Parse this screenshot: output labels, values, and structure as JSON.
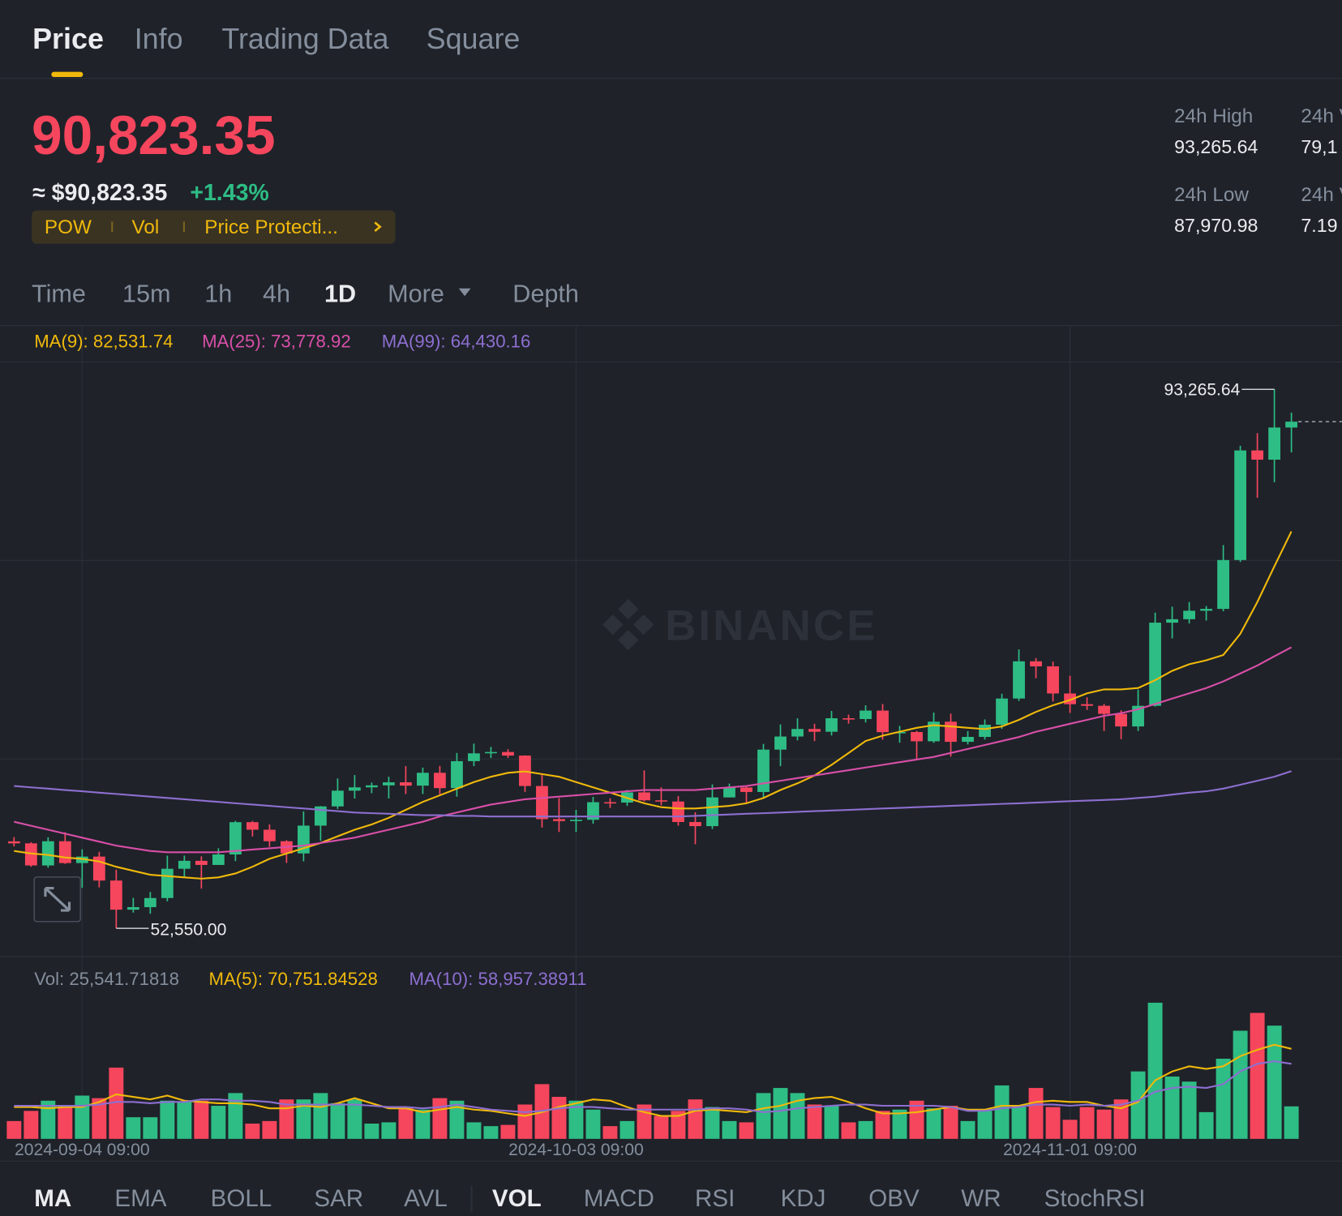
{
  "tabs": [
    "Price",
    "Info",
    "Trading Data",
    "Square"
  ],
  "price": {
    "last": "90,823.35",
    "usd": "≈ $90,823.35",
    "change": "+1.43%"
  },
  "tags": [
    "POW",
    "Vol",
    "Price Protecti..."
  ],
  "stats": [
    {
      "label": "24h High",
      "value": "93,265.64"
    },
    {
      "label": "24h Low",
      "value": "87,970.98"
    },
    {
      "label": "24h V",
      "value": "79,1"
    },
    {
      "label": "24h V",
      "value": "7.19"
    }
  ],
  "intervals": [
    "Time",
    "15m",
    "1h",
    "4h",
    "1D",
    "More",
    "Depth"
  ],
  "ma_legend": [
    "MA(9): 82,531.74",
    "MA(25): 73,778.92",
    "MA(99): 64,430.16"
  ],
  "vol_legend": [
    "Vol: 25,541.71818",
    "MA(5): 70,751.84528",
    "MA(10): 58,957.38911"
  ],
  "watermark": "BINANCE",
  "indicators": [
    "MA",
    "EMA",
    "BOLL",
    "SAR",
    "AVL",
    "VOL",
    "MACD",
    "RSI",
    "KDJ",
    "OBV",
    "WR",
    "StochRSI"
  ],
  "chart_data": {
    "type": "candlestick",
    "categories": [
      null,
      null,
      null,
      null,
      "2024-09-04 09:00",
      null,
      null,
      null,
      null,
      null,
      null,
      null,
      null,
      null,
      null,
      null,
      null,
      null,
      null,
      null,
      null,
      null,
      null,
      null,
      null,
      null,
      null,
      null,
      null,
      null,
      null,
      null,
      null,
      "2024-10-03 09:00",
      null,
      null,
      null,
      null,
      null,
      null,
      null,
      null,
      null,
      null,
      null,
      null,
      null,
      null,
      null,
      null,
      null,
      null,
      null,
      null,
      null,
      null,
      null,
      null,
      null,
      null,
      null,
      null,
      "2024-11-01 09:00",
      null,
      null,
      null,
      null,
      null,
      null,
      null,
      null,
      null,
      null,
      null,
      null,
      null
    ],
    "open": [
      59120,
      58970,
      57300,
      59130,
      57480,
      57970,
      56160,
      53960,
      54150,
      54840,
      57050,
      57650,
      57340,
      58130,
      60570,
      60000,
      59130,
      58210,
      60310,
      61760,
      62950,
      63200,
      63350,
      63580,
      63330,
      64300,
      63140,
      65180,
      65770,
      65870,
      65600,
      63300,
      60800,
      60650,
      60750,
      62080,
      62050,
      62820,
      62220,
      62130,
      60580,
      60270,
      62440,
      63190,
      62850,
      66050,
      67040,
      67610,
      67400,
      68420,
      68360,
      69000,
      67370,
      67380,
      66680,
      68160,
      66640,
      67010,
      67930,
      69910,
      72720,
      72340,
      70290,
      69480,
      69360,
      68750,
      67800,
      69360,
      75640,
      75900,
      76540,
      76680,
      80370,
      88650,
      87950,
      90380
    ],
    "high": [
      59450,
      59060,
      59430,
      59810,
      58520,
      58330,
      56980,
      54850,
      55300,
      58040,
      58040,
      57990,
      58600,
      60670,
      60660,
      60400,
      59210,
      61380,
      61790,
      63870,
      64130,
      63560,
      64000,
      64800,
      64690,
      64820,
      65800,
      66500,
      66260,
      66080,
      65620,
      64130,
      62390,
      61500,
      62480,
      62370,
      63000,
      64480,
      63200,
      62540,
      61320,
      63420,
      63480,
      63290,
      66480,
      67950,
      68420,
      68000,
      68970,
      68690,
      69400,
      69500,
      67840,
      67470,
      68850,
      68770,
      67450,
      68330,
      70270,
      73620,
      72960,
      72700,
      71630,
      70000,
      69500,
      69020,
      70580,
      76400,
      76850,
      77200,
      76900,
      81500,
      89000,
      89950,
      93265.64,
      91500
    ],
    "low": [
      58740,
      57200,
      57130,
      57420,
      55610,
      55650,
      52550,
      53740,
      53650,
      54590,
      56400,
      55550,
      57330,
      57630,
      59490,
      58700,
      57490,
      57610,
      59170,
      61570,
      62350,
      62760,
      62360,
      62700,
      62700,
      62670,
      62500,
      64800,
      65420,
      65420,
      62860,
      60160,
      59830,
      59830,
      60460,
      61640,
      61800,
      62130,
      61850,
      60300,
      58900,
      60050,
      62440,
      62040,
      62420,
      64800,
      66750,
      66700,
      67120,
      68010,
      68100,
      66800,
      66570,
      65260,
      66560,
      65520,
      66440,
      66810,
      67620,
      69730,
      71440,
      69680,
      68820,
      69050,
      67460,
      66840,
      67460,
      69300,
      74450,
      75580,
      75800,
      76500,
      80220,
      85070,
      86250,
      88500
    ],
    "close": [
      58970,
      57300,
      59130,
      57480,
      57970,
      56160,
      53960,
      54150,
      54840,
      57050,
      57650,
      57340,
      58130,
      60570,
      60000,
      59130,
      58210,
      60310,
      61760,
      62950,
      63200,
      63350,
      63580,
      63330,
      64300,
      63140,
      65180,
      65770,
      65870,
      65600,
      63300,
      60800,
      60650,
      60750,
      62080,
      62050,
      62820,
      62220,
      62130,
      60580,
      60270,
      62440,
      63190,
      62850,
      66050,
      67040,
      67610,
      67400,
      68420,
      68360,
      69000,
      67370,
      67380,
      66680,
      68160,
      66640,
      67010,
      67930,
      69910,
      72720,
      72340,
      70290,
      69480,
      69360,
      68750,
      67800,
      69360,
      75640,
      75900,
      76540,
      76680,
      80370,
      88650,
      87950,
      90380,
      90823.35
    ],
    "volume": [
      14000,
      22000,
      30000,
      25000,
      34000,
      32000,
      56000,
      17000,
      17000,
      30000,
      29000,
      30000,
      26000,
      36000,
      12000,
      14000,
      31000,
      31000,
      36000,
      28000,
      31000,
      12000,
      13000,
      25000,
      23000,
      32000,
      30000,
      13000,
      10000,
      11000,
      27000,
      43000,
      33000,
      30000,
      23000,
      10000,
      14000,
      27000,
      18000,
      22000,
      31000,
      25000,
      14000,
      13000,
      36000,
      40000,
      36000,
      27000,
      26000,
      13000,
      14000,
      22000,
      23000,
      30000,
      24000,
      26000,
      14000,
      22000,
      42000,
      25000,
      40000,
      25000,
      15000,
      25000,
      23000,
      31000,
      53000,
      107000,
      49000,
      45000,
      21000,
      63000,
      85000,
      99000,
      89000,
      25541.71818
    ],
    "ma_lines": [
      {
        "color": "#f0b90b",
        "values": [
          58400,
          58200,
          58100,
          57900,
          57800,
          57600,
          57200,
          56900,
          56600,
          56500,
          56400,
          56300,
          56400,
          56700,
          57200,
          57800,
          58200,
          58600,
          59000,
          59500,
          60000,
          60400,
          60900,
          61500,
          62100,
          62600,
          63100,
          63600,
          64000,
          64300,
          64400,
          64200,
          64000,
          63600,
          63200,
          62800,
          62400,
          62000,
          61700,
          61600,
          61600,
          61700,
          61800,
          62000,
          62400,
          63000,
          63500,
          64100,
          64900,
          65800,
          66700,
          67100,
          67400,
          67700,
          67900,
          67800,
          67700,
          67600,
          67800,
          68300,
          68900,
          69400,
          69800,
          70300,
          70600,
          70600,
          70700,
          71300,
          72000,
          72500,
          72800,
          73200,
          74800,
          77200,
          79900,
          82531.74
        ]
      },
      {
        "color": "#d94fa8",
        "values": [
          60600,
          60300,
          60000,
          59700,
          59400,
          59100,
          58800,
          58600,
          58400,
          58300,
          58300,
          58300,
          58300,
          58400,
          58500,
          58600,
          58700,
          58800,
          59000,
          59200,
          59400,
          59700,
          60000,
          60300,
          60600,
          61000,
          61300,
          61600,
          61900,
          62100,
          62300,
          62400,
          62500,
          62600,
          62700,
          62800,
          62900,
          63000,
          63000,
          63000,
          63000,
          63100,
          63200,
          63300,
          63500,
          63700,
          63900,
          64100,
          64300,
          64500,
          64700,
          64900,
          65100,
          65300,
          65500,
          65800,
          66100,
          66400,
          66700,
          67000,
          67400,
          67700,
          68000,
          68300,
          68600,
          68800,
          69100,
          69500,
          69900,
          70300,
          70700,
          71200,
          71800,
          72400,
          73100,
          73778.92
        ]
      },
      {
        "color": "#8d6fd0",
        "values": [
          63300,
          63200,
          63100,
          63000,
          62900,
          62800,
          62700,
          62600,
          62500,
          62400,
          62300,
          62200,
          62100,
          62000,
          61900,
          61800,
          61700,
          61600,
          61500,
          61400,
          61300,
          61250,
          61200,
          61150,
          61100,
          61100,
          61050,
          61050,
          61000,
          61000,
          61000,
          61000,
          61000,
          61000,
          61000,
          61000,
          61000,
          61000,
          61000,
          61000,
          61050,
          61100,
          61150,
          61200,
          61250,
          61300,
          61350,
          61400,
          61450,
          61500,
          61550,
          61600,
          61650,
          61700,
          61750,
          61800,
          61850,
          61900,
          61950,
          62000,
          62050,
          62100,
          62150,
          62200,
          62250,
          62300,
          62400,
          62500,
          62650,
          62800,
          62900,
          63100,
          63400,
          63700,
          64000,
          64430.16
        ]
      }
    ],
    "vol_ma_lines": [
      {
        "color": "#f0b90b",
        "values": [
          25000,
          25000,
          24000,
          25000,
          25000,
          29000,
          35000,
          33000,
          31000,
          34000,
          30000,
          29000,
          28000,
          28000,
          27000,
          24000,
          24000,
          26000,
          25000,
          28000,
          32000,
          28000,
          24000,
          24000,
          21000,
          23000,
          25000,
          23000,
          22000,
          20000,
          18000,
          21000,
          25000,
          28000,
          31000,
          30000,
          25000,
          21000,
          18000,
          18000,
          22000,
          23000,
          22000,
          21000,
          24000,
          26000,
          30000,
          32000,
          33000,
          29000,
          24000,
          20000,
          20000,
          21000,
          23000,
          25000,
          23000,
          23000,
          26000,
          26000,
          29000,
          30000,
          29000,
          29000,
          26000,
          24000,
          29000,
          46000,
          53000,
          57000,
          55000,
          57000,
          65000,
          70000,
          74000,
          70751.84528
        ]
      },
      {
        "color": "#8d6fd0",
        "values": [
          26000,
          26000,
          26000,
          26000,
          26000,
          27000,
          29000,
          29000,
          28000,
          29000,
          29000,
          31000,
          31000,
          30000,
          30000,
          29000,
          27000,
          27000,
          27000,
          27000,
          27000,
          26000,
          25000,
          25000,
          24000,
          25000,
          27000,
          25000,
          23000,
          22000,
          21000,
          22000,
          24000,
          25000,
          25000,
          24000,
          23000,
          23000,
          23000,
          23000,
          23000,
          24000,
          24000,
          23000,
          21000,
          22000,
          24000,
          25000,
          26000,
          27000,
          27000,
          26000,
          26000,
          26000,
          26000,
          25000,
          22000,
          22000,
          24000,
          25000,
          27000,
          27000,
          26000,
          27000,
          26000,
          27000,
          30000,
          37000,
          40000,
          41000,
          40000,
          43000,
          53000,
          59000,
          61000,
          58957.38911
        ]
      }
    ],
    "high_label": "93,265.64",
    "low_label": "52,550.00",
    "up_color": "#2ebd85",
    "down_color": "#f6465d",
    "ylim": [
      50415,
      95334
    ],
    "vol_ylim": [
      0,
      115000
    ]
  }
}
